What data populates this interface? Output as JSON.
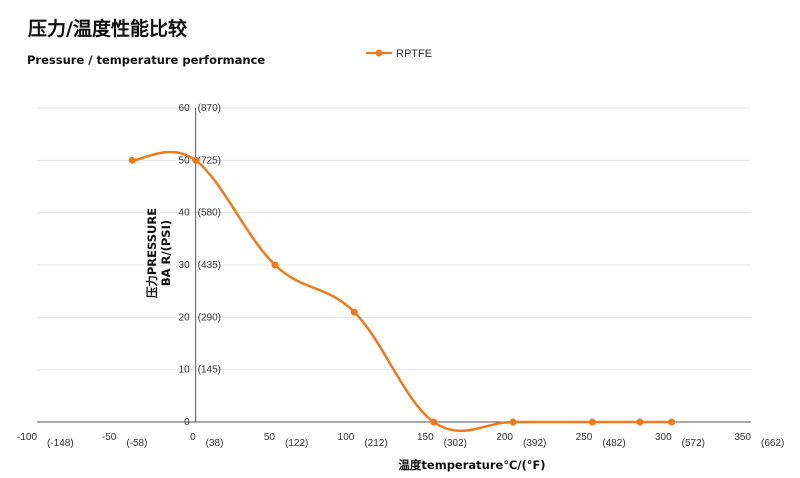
{
  "chart_data": {
    "type": "line",
    "title": "压力/温度性能比较",
    "subtitle": "Pressure / temperature performance",
    "xlabel": "温度temperature℃/(°F)",
    "ylabel": [
      "压力PRESSURE",
      "BA R/(PSI)"
    ],
    "xlim": [
      -100,
      350
    ],
    "ylim": [
      0,
      60
    ],
    "x_ticks": [
      {
        "c": "-100",
        "f": "(-148)"
      },
      {
        "c": "-50",
        "f": "(-58)"
      },
      {
        "c": "0",
        "f": "(38)"
      },
      {
        "c": "50",
        "f": "(122)"
      },
      {
        "c": "100",
        "f": "(212)"
      },
      {
        "c": "150",
        "f": "(302)"
      },
      {
        "c": "200",
        "f": "(392)"
      },
      {
        "c": "250",
        "f": "(482)"
      },
      {
        "c": "300",
        "f": "(572)"
      },
      {
        "c": "350",
        "f": "(662)"
      }
    ],
    "y_ticks": [
      {
        "bar": "0",
        "psi": ""
      },
      {
        "bar": "10",
        "psi": "(145)"
      },
      {
        "bar": "20",
        "psi": "(290)"
      },
      {
        "bar": "30",
        "psi": "(435)"
      },
      {
        "bar": "40",
        "psi": "(580)"
      },
      {
        "bar": "50",
        "psi": "(725)"
      },
      {
        "bar": "60",
        "psi": "(870)"
      }
    ],
    "grid": true,
    "legend_position": "top-center",
    "series": [
      {
        "name": "RPTFE",
        "color": "#F07A1A",
        "x": [
          -40,
          0,
          50,
          100,
          150,
          200,
          250,
          280,
          300
        ],
        "y": [
          50,
          50,
          30,
          21,
          0,
          0,
          0,
          0,
          0
        ]
      }
    ]
  }
}
